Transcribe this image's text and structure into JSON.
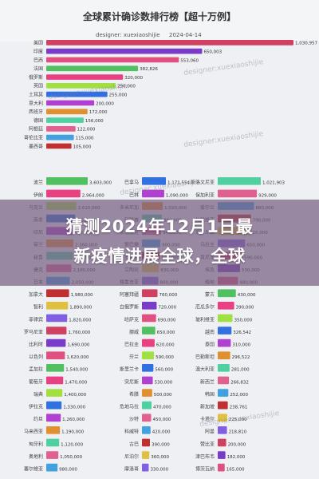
{
  "header": {
    "title": "全球累计确诊数排行榜【超十万例】",
    "user_label": "designer: xuexiaoshijie",
    "date_label": "2024-04-14"
  },
  "watermarks": [
    "designer:xuexiaoshijie",
    "designer:xuexiaoshijie",
    "designer:xuexiaoshijie",
    "designer:xuexiaoshijie",
    "designer:xuexiaoshijie"
  ],
  "headline": {
    "line1": "猜测2024年12月1日最",
    "line2": "新疫情进展全球，全球"
  },
  "colors": {
    "palette": [
      "#d04060",
      "#7a3cc8",
      "#e05080",
      "#50c060",
      "#e84080",
      "#a0e040",
      "#3070e0",
      "#b040d0",
      "#e09030",
      "#50d0a0",
      "#e06090",
      "#40a0e0",
      "#c03030",
      "#e0c040",
      "#8060e0"
    ]
  },
  "chart_data": [
    {
      "type": "bar",
      "orientation": "horizontal",
      "title": "全球累计确诊数排行榜【超十万例】",
      "categories": [
        "美国",
        "印度",
        "巴西",
        "法国",
        "俄罗斯",
        "英国",
        "土耳其",
        "意大利",
        "西班牙",
        "德国",
        "阿根廷",
        "哥伦比亚",
        "墨西哥"
      ],
      "values": [
        1030957,
        650003,
        553060,
        382826,
        320000,
        290000,
        255000,
        200000,
        172000,
        156000,
        122000,
        115000,
        105000
      ]
    },
    {
      "type": "bar",
      "orientation": "horizontal",
      "categories": [
        "波兰",
        "伊朗",
        "乌克兰",
        "南非",
        "印尼",
        "荷兰",
        "秘鲁",
        "捷克",
        "日本",
        "加拿大",
        "智利",
        "菲律宾",
        "罗马尼亚",
        "比利时",
        "以色列",
        "孟加拉",
        "葡萄牙",
        "瑞典",
        "伊拉克",
        "约旦",
        "马来西亚",
        "匈牙利",
        "奥地利",
        "塞尔维亚"
      ],
      "values": [
        3603000,
        2964000,
        2610000,
        2520000,
        2440000,
        2360000,
        2290000,
        2180000,
        2050000,
        1980000,
        1890000,
        1820000,
        1760000,
        1690000,
        1620000,
        1540000,
        1470000,
        1400000,
        1330000,
        1260000,
        1190000,
        1120000,
        1050000,
        980000
      ]
    },
    {
      "type": "bar",
      "orientation": "horizontal",
      "categories": [
        "巴拿马",
        "巴林",
        "多米尼加",
        "阿联酋",
        "斯洛伐克",
        "黎巴嫩",
        "克罗地亚",
        "立陶宛",
        "格鲁吉亚",
        "阿塞拜疆",
        "白俄罗斯",
        "哈萨克",
        "挪威",
        "巴拉圭",
        "芬兰",
        "斯里兰卡",
        "突尼斯",
        "希腊",
        "危地马拉",
        "沙特",
        "科威特",
        "古巴",
        "尼泊尔",
        "摩洛哥"
      ],
      "values": [
        1171554,
        1090000,
        1020000,
        980000,
        940000,
        900000,
        870000,
        830000,
        800000,
        760000,
        720000,
        690000,
        650000,
        620000,
        590000,
        560000,
        530000,
        500000,
        470000,
        450000,
        420000,
        390000,
        360000,
        330000
      ]
    },
    {
      "type": "bar",
      "orientation": "horizontal",
      "categories": [
        "斯洛文尼亚",
        "保加利亚",
        "爱尔兰",
        "拉脱维亚",
        "爱沙尼亚",
        "乌拉圭",
        "肯尼亚",
        "埃及",
        "缅甸",
        "蒙古",
        "厄瓜多尔",
        "玻利维亚",
        "越南",
        "泰国",
        "巴勒斯坦",
        "澳大利亚",
        "新西兰",
        "韩国",
        "新加坡",
        "卡塔尔",
        "阿曼",
        "赞比亚",
        "津巴布韦",
        "博茨瓦纳"
      ],
      "values": [
        1021903,
        929000,
        860000,
        790000,
        720000,
        650000,
        590000,
        530000,
        480000,
        430000,
        390000,
        350000,
        326542,
        310000,
        296522,
        281000,
        266832,
        252000,
        238761,
        225000,
        218810,
        200000,
        182000,
        165000
      ]
    }
  ],
  "value_labels_visible": {
    "top": [
      "1,030,957",
      "650,003",
      "553,060",
      "382,826"
    ],
    "left": [
      "3,603,000",
      "2,964,000"
    ],
    "middle": [
      "1,171,554"
    ],
    "right": [
      "1,021,903",
      "326,542",
      "296,522",
      "266,832",
      "238,761",
      "218,810"
    ]
  }
}
